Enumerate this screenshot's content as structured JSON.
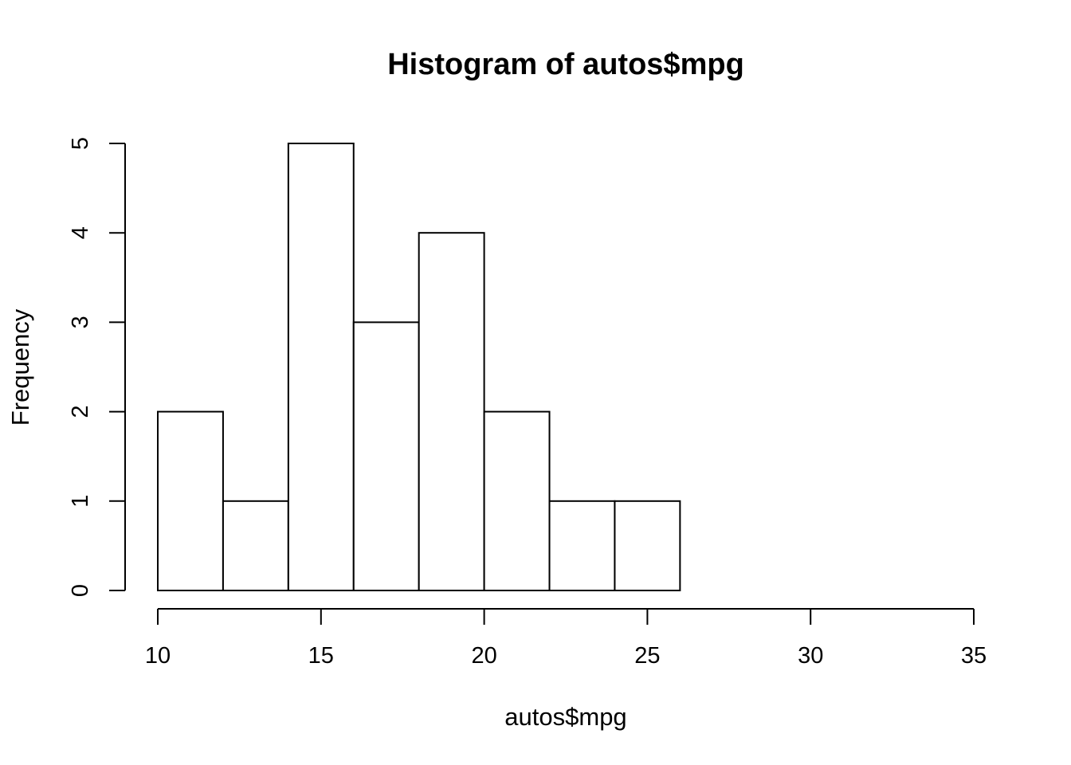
{
  "chart_data": {
    "type": "bar",
    "title": "Histogram of autos$mpg",
    "xlabel": "autos$mpg",
    "ylabel": "Frequency",
    "bins": [
      {
        "from": 10,
        "to": 12,
        "count": 2
      },
      {
        "from": 12,
        "to": 14,
        "count": 1
      },
      {
        "from": 14,
        "to": 16,
        "count": 5
      },
      {
        "from": 16,
        "to": 18,
        "count": 3
      },
      {
        "from": 18,
        "to": 20,
        "count": 4
      },
      {
        "from": 20,
        "to": 22,
        "count": 2
      },
      {
        "from": 22,
        "to": 24,
        "count": 1
      },
      {
        "from": 24,
        "to": 26,
        "count": 1
      }
    ],
    "xlim": [
      10,
      35
    ],
    "ylim": [
      0,
      5
    ],
    "xticks": [
      10,
      15,
      20,
      25,
      30,
      35
    ],
    "yticks": [
      0,
      1,
      2,
      3,
      4,
      5
    ],
    "grid": false,
    "colors": {
      "bar_fill": "#ffffff",
      "bar_stroke": "#000000"
    }
  }
}
